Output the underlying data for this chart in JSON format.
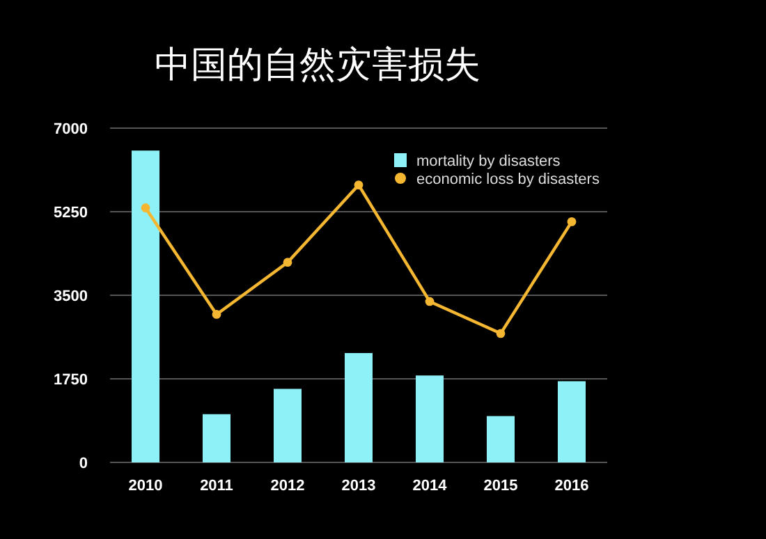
{
  "chart_data": {
    "type": "bar",
    "title": "中国的自然灾害损失",
    "categories": [
      "2010",
      "2011",
      "2012",
      "2013",
      "2014",
      "2015",
      "2016"
    ],
    "series": [
      {
        "name": "mortality by disasters",
        "color": "#8ef1f7",
        "values": [
          6530,
          1010,
          1540,
          2290,
          1820,
          970,
          1700
        ]
      },
      {
        "name": "economic loss by disasters",
        "type": "line",
        "color": "#f5b731",
        "marker": "circle",
        "values": [
          5330,
          3100,
          4190,
          5810,
          3370,
          2700,
          5040
        ]
      }
    ],
    "ylim": [
      0,
      7000
    ],
    "yticks": [
      0,
      1750,
      3500,
      5250,
      7000
    ],
    "grid": "y",
    "legend": "top right"
  }
}
